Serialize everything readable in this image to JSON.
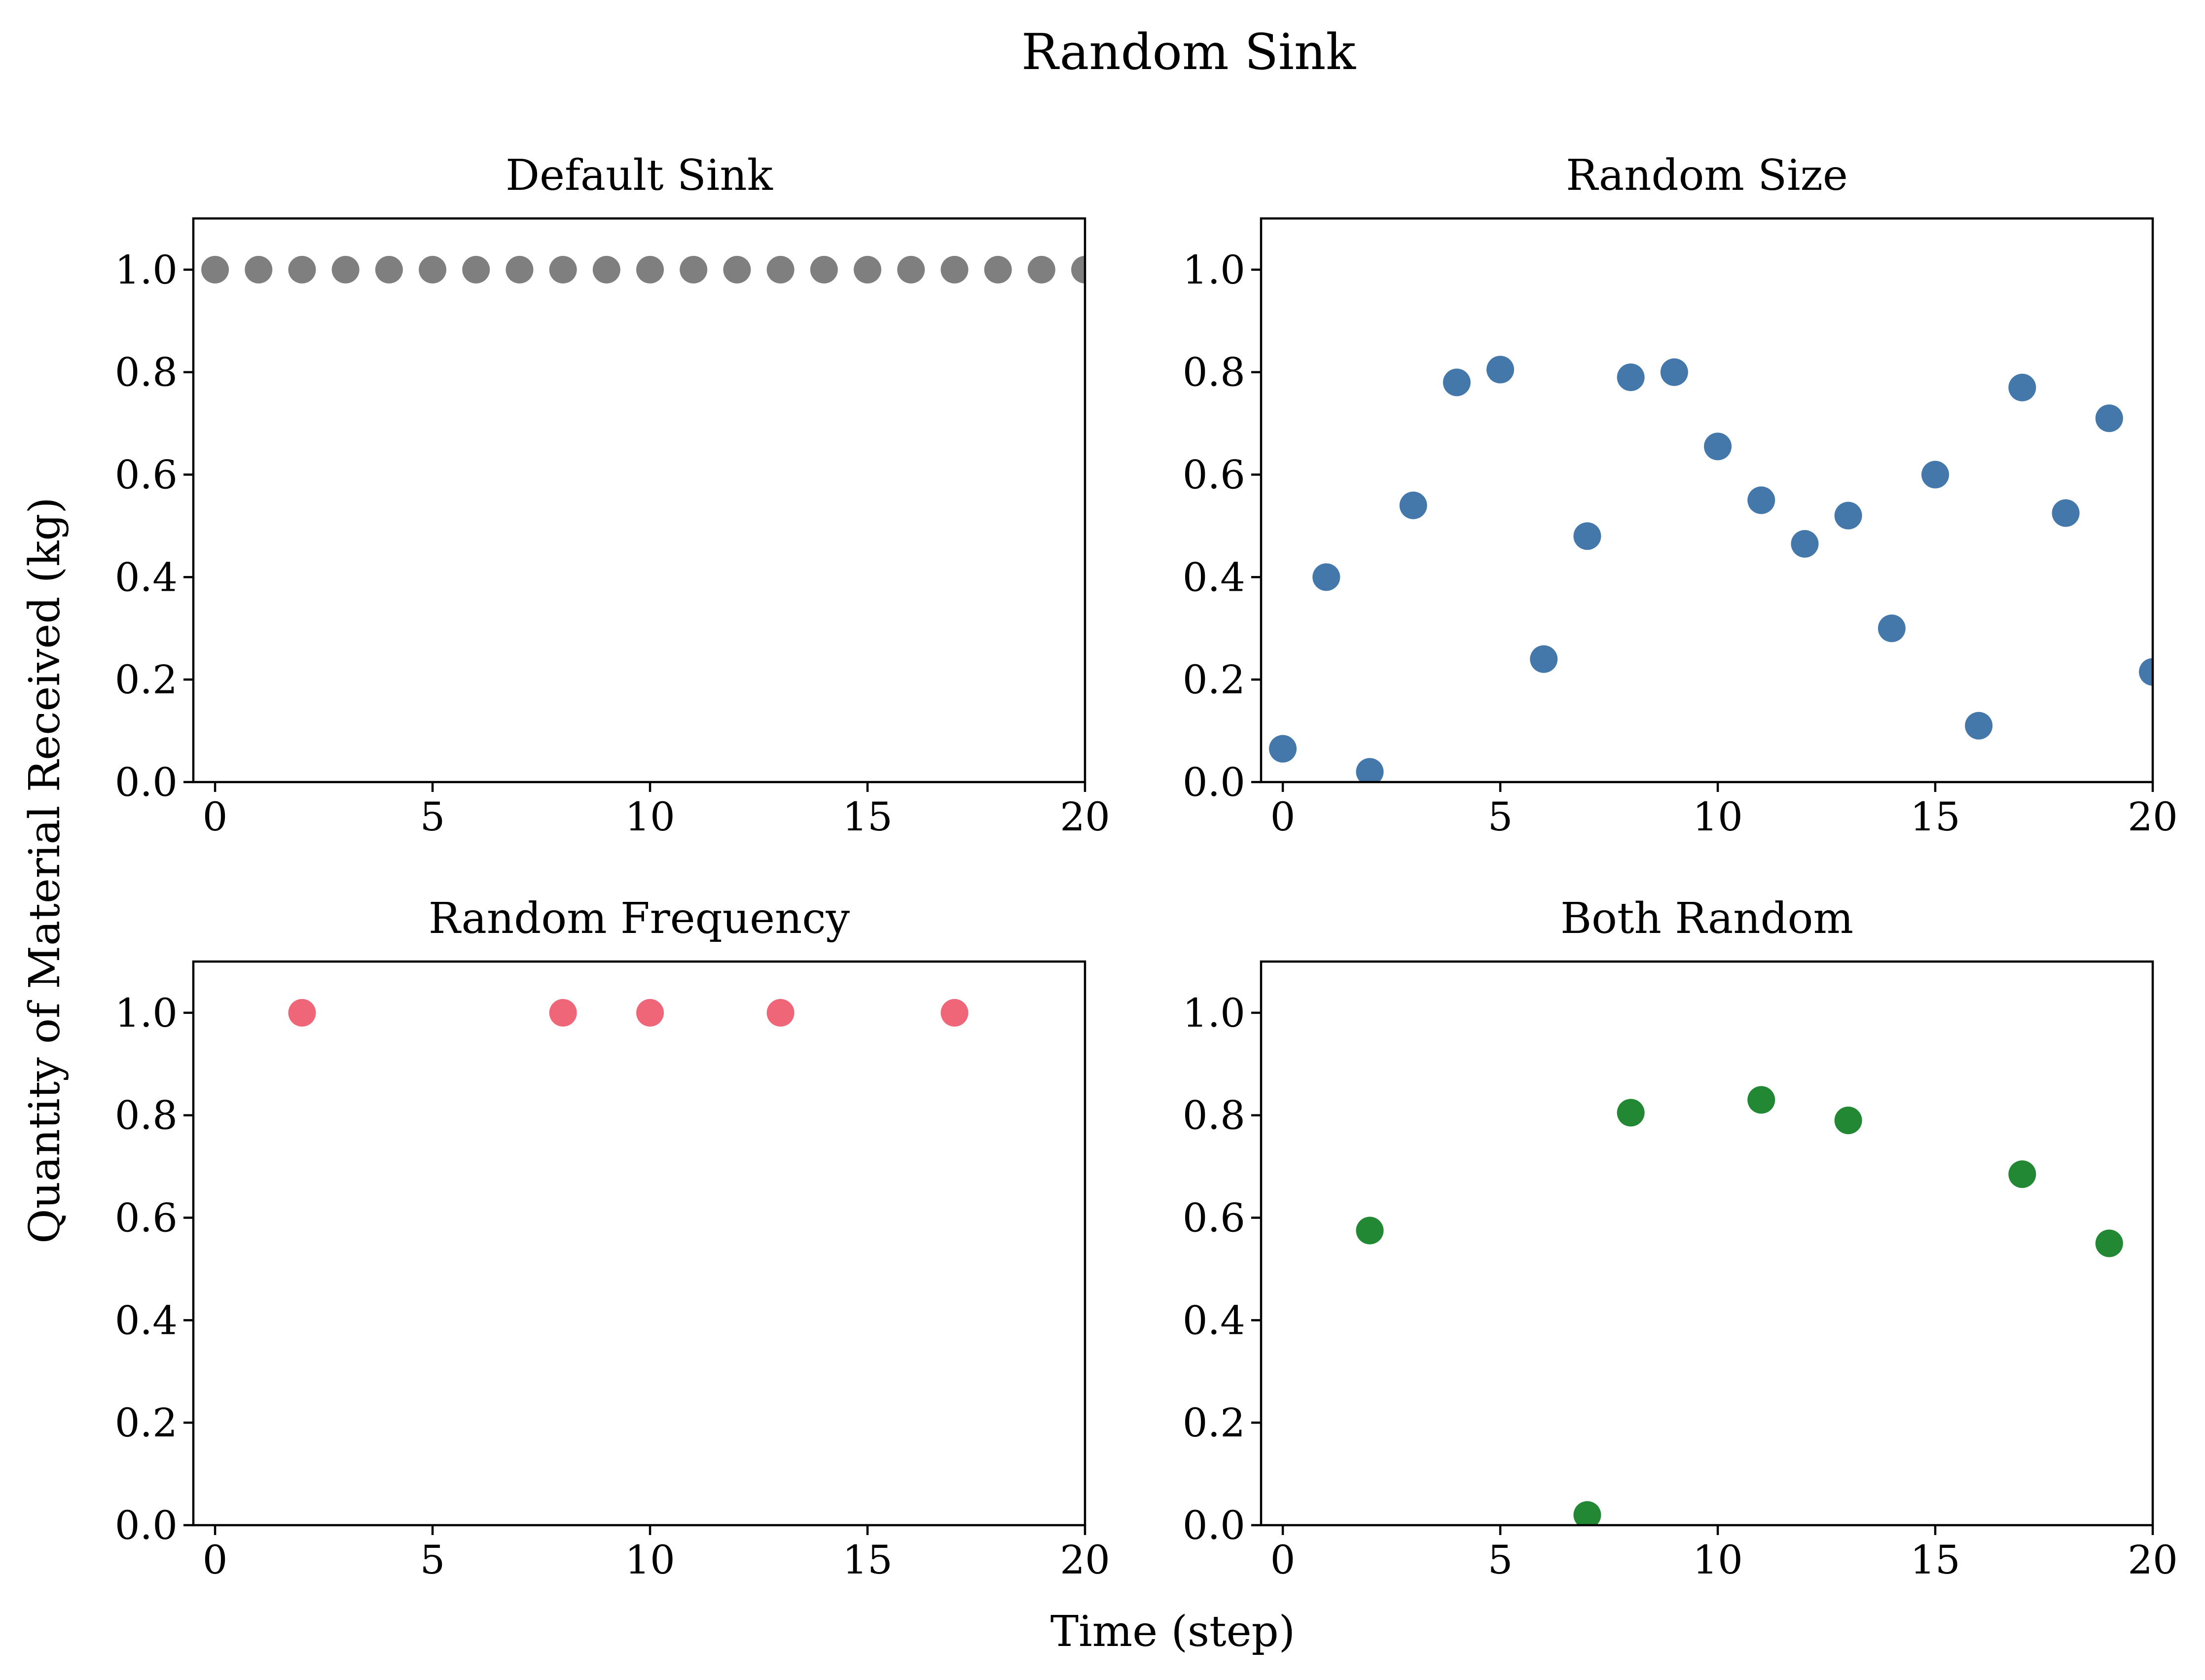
{
  "chart_data": {
    "title": "Random Sink",
    "xlabel": "Time (step)",
    "ylabel": "Quantity of Material Received (kg)",
    "xticks": [
      0,
      5,
      10,
      15,
      20
    ],
    "xtick_labels": [
      "0",
      "5",
      "10",
      "15",
      "20"
    ],
    "yticks": [
      0.0,
      0.2,
      0.4,
      0.6,
      0.8,
      1.0
    ],
    "ytick_labels": [
      "0.0",
      "0.2",
      "0.4",
      "0.6",
      "0.8",
      "1.0"
    ],
    "panels": [
      {
        "type": "scatter",
        "title": "Default Sink",
        "color": "#7f7f7f",
        "xlim": [
          -0.5,
          20
        ],
        "ylim": [
          0,
          1.1
        ],
        "grid": false,
        "points": [
          {
            "x": 0,
            "y": 1.0
          },
          {
            "x": 1,
            "y": 1.0
          },
          {
            "x": 2,
            "y": 1.0
          },
          {
            "x": 3,
            "y": 1.0
          },
          {
            "x": 4,
            "y": 1.0
          },
          {
            "x": 5,
            "y": 1.0
          },
          {
            "x": 6,
            "y": 1.0
          },
          {
            "x": 7,
            "y": 1.0
          },
          {
            "x": 8,
            "y": 1.0
          },
          {
            "x": 9,
            "y": 1.0
          },
          {
            "x": 10,
            "y": 1.0
          },
          {
            "x": 11,
            "y": 1.0
          },
          {
            "x": 12,
            "y": 1.0
          },
          {
            "x": 13,
            "y": 1.0
          },
          {
            "x": 14,
            "y": 1.0
          },
          {
            "x": 15,
            "y": 1.0
          },
          {
            "x": 16,
            "y": 1.0
          },
          {
            "x": 17,
            "y": 1.0
          },
          {
            "x": 18,
            "y": 1.0
          },
          {
            "x": 19,
            "y": 1.0
          },
          {
            "x": 20,
            "y": 1.0
          }
        ]
      },
      {
        "type": "scatter",
        "title": "Random Size",
        "color": "#4477aa",
        "xlim": [
          -0.5,
          20
        ],
        "ylim": [
          0,
          1.1
        ],
        "grid": false,
        "points": [
          {
            "x": 0,
            "y": 0.065
          },
          {
            "x": 1,
            "y": 0.4
          },
          {
            "x": 2,
            "y": 0.02
          },
          {
            "x": 3,
            "y": 0.54
          },
          {
            "x": 4,
            "y": 0.78
          },
          {
            "x": 5,
            "y": 0.805
          },
          {
            "x": 6,
            "y": 0.24
          },
          {
            "x": 7,
            "y": 0.48
          },
          {
            "x": 8,
            "y": 0.79
          },
          {
            "x": 9,
            "y": 0.8
          },
          {
            "x": 10,
            "y": 0.655
          },
          {
            "x": 11,
            "y": 0.55
          },
          {
            "x": 12,
            "y": 0.465
          },
          {
            "x": 13,
            "y": 0.52
          },
          {
            "x": 14,
            "y": 0.3
          },
          {
            "x": 15,
            "y": 0.6
          },
          {
            "x": 16,
            "y": 0.11
          },
          {
            "x": 17,
            "y": 0.77
          },
          {
            "x": 18,
            "y": 0.525
          },
          {
            "x": 19,
            "y": 0.71
          },
          {
            "x": 20,
            "y": 0.215
          }
        ]
      },
      {
        "type": "scatter",
        "title": "Random Frequency",
        "color": "#ee6677",
        "xlim": [
          -0.5,
          20
        ],
        "ylim": [
          0,
          1.1
        ],
        "grid": false,
        "points": [
          {
            "x": 2,
            "y": 1.0
          },
          {
            "x": 8,
            "y": 1.0
          },
          {
            "x": 10,
            "y": 1.0
          },
          {
            "x": 13,
            "y": 1.0
          },
          {
            "x": 17,
            "y": 1.0
          }
        ]
      },
      {
        "type": "scatter",
        "title": "Both Random",
        "color": "#228833",
        "xlim": [
          -0.5,
          20
        ],
        "ylim": [
          0,
          1.1
        ],
        "grid": false,
        "points": [
          {
            "x": 2,
            "y": 0.575
          },
          {
            "x": 7,
            "y": 0.02
          },
          {
            "x": 8,
            "y": 0.805
          },
          {
            "x": 11,
            "y": 0.83
          },
          {
            "x": 13,
            "y": 0.79
          },
          {
            "x": 17,
            "y": 0.685
          },
          {
            "x": 19,
            "y": 0.55
          }
        ]
      }
    ]
  }
}
